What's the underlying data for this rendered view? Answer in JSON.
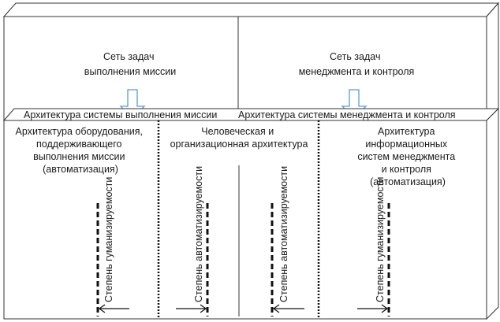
{
  "top_block": {
    "left_cell": [
      "Сеть задач",
      "выполнения миссии"
    ],
    "right_cell": [
      "Сеть задач",
      "менеджмента и контроля"
    ]
  },
  "bottom_block": {
    "left_header": "Архитектура системы выполнения миссии",
    "right_header": "Архитектура системы менеджмента и контроля",
    "columns": [
      [
        "Архитектура оборудования,",
        "поддерживающего",
        "выполнения миссии",
        "(автоматизация)"
      ],
      [
        "Человеческая и",
        "организационная архитектура"
      ],
      [
        "Архитектура",
        "информационных",
        "систем менеджмента",
        "и контроля",
        "(автоматизация)"
      ]
    ],
    "axes": [
      {
        "label": "Степень гуманизируемости",
        "arrow": "left"
      },
      {
        "label": "Степень автоматизируемости",
        "arrow": "right"
      },
      {
        "label": "Степень автоматизируемости",
        "arrow": "left"
      },
      {
        "label": "Степень гуманизируемости",
        "arrow": "right"
      }
    ]
  },
  "colors": {
    "arrow_outline": "#5b9bd5",
    "line": "#1a1a1a"
  }
}
